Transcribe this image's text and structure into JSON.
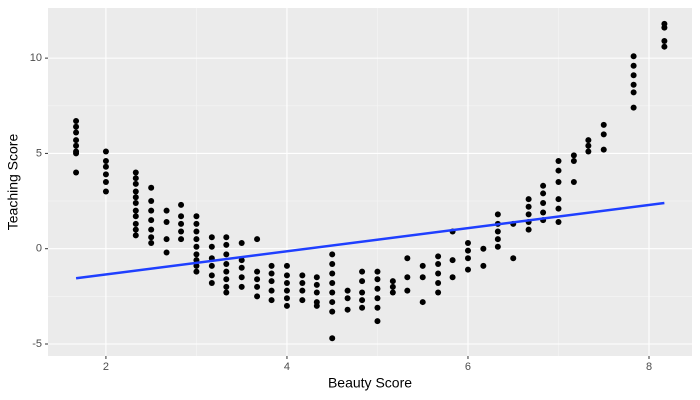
{
  "chart_data": {
    "type": "scatter",
    "xlabel": "Beauty Score",
    "ylabel": "Teaching Score",
    "xlim": [
      1.36,
      8.475
    ],
    "ylim": [
      -5.63,
      12.63
    ],
    "xticks": [
      2,
      4,
      6,
      8
    ],
    "yticks": [
      -5,
      0,
      5,
      10
    ],
    "minor_xticks": [
      3,
      5,
      7
    ],
    "minor_yticks": [
      -2.5,
      2.5,
      7.5
    ],
    "grid": true,
    "series": [
      {
        "type": "scatter",
        "color": "#000000",
        "x": [
          1.67,
          1.67,
          1.67,
          1.67,
          1.67,
          1.67,
          1.67,
          1.67,
          2,
          2,
          2,
          2,
          2,
          2,
          2.33,
          2.33,
          2.33,
          2.33,
          2.33,
          2.33,
          2.33,
          2.33,
          2.33,
          2.33,
          2.33,
          2.5,
          2.5,
          2.5,
          2.5,
          2.5,
          2.5,
          2.5,
          2.67,
          2.67,
          2.67,
          2.67,
          2.83,
          2.83,
          2.83,
          2.83,
          2.83,
          3,
          3,
          3,
          3,
          3,
          3,
          3,
          3,
          3,
          3.17,
          3.17,
          3.17,
          3.17,
          3.17,
          3.17,
          3.33,
          3.33,
          3.33,
          3.33,
          3.33,
          3.33,
          3.33,
          3.33,
          3.5,
          3.5,
          3.5,
          3.5,
          3.5,
          3.67,
          3.67,
          3.67,
          3.67,
          3.67,
          3.83,
          3.83,
          3.83,
          3.83,
          3.83,
          4,
          4,
          4,
          4,
          4,
          4,
          4.17,
          4.17,
          4.17,
          4.17,
          4.33,
          4.33,
          4.33,
          4.33,
          4.33,
          4.5,
          4.5,
          4.5,
          4.5,
          4.5,
          4.5,
          4.5,
          4.5,
          4.67,
          4.67,
          4.67,
          4.83,
          4.83,
          4.83,
          4.83,
          4.83,
          5,
          5,
          5,
          5,
          5,
          5,
          5.17,
          5.17,
          5.17,
          5.33,
          5.33,
          5.33,
          5.5,
          5.5,
          5.5,
          5.67,
          5.67,
          5.67,
          5.67,
          5.67,
          5.83,
          5.83,
          5.83,
          6,
          6,
          6,
          6,
          6.17,
          6.17,
          6.33,
          6.33,
          6.33,
          6.33,
          6.33,
          6.5,
          6.5,
          6.67,
          6.67,
          6.67,
          6.67,
          6.67,
          6.83,
          6.83,
          6.83,
          6.83,
          6.83,
          7,
          7,
          7,
          7,
          7,
          7,
          7.17,
          7.17,
          7.17,
          7.33,
          7.33,
          7.33,
          7.5,
          7.5,
          7.5,
          7.83,
          7.83,
          7.83,
          7.83,
          7.83,
          7.83,
          8.17,
          8.17,
          8.17,
          8.17
        ],
        "values": [
          6.7,
          6.4,
          6.1,
          5.7,
          5.4,
          5.1,
          5.0,
          4.0,
          5.1,
          4.6,
          4.3,
          3.9,
          3.5,
          3.0,
          4.0,
          3.7,
          3.4,
          3.0,
          2.7,
          2.4,
          2.0,
          1.7,
          1.3,
          1.0,
          0.7,
          3.2,
          2.5,
          2.0,
          1.5,
          1.0,
          0.6,
          0.3,
          2.0,
          1.4,
          0.5,
          -0.2,
          2.3,
          1.7,
          1.3,
          0.9,
          0.5,
          1.7,
          1.3,
          0.9,
          0.5,
          0.1,
          -0.3,
          -0.6,
          -0.9,
          -1.2,
          0.6,
          0.1,
          -0.5,
          -0.9,
          -1.4,
          -1.8,
          0.6,
          0.2,
          -0.3,
          -0.8,
          -1.2,
          -1.6,
          -2.0,
          -2.3,
          0.3,
          -0.6,
          -1.0,
          -1.5,
          -2.0,
          0.5,
          -1.2,
          -1.6,
          -2.0,
          -2.5,
          -0.9,
          -1.3,
          -1.7,
          -2.2,
          -2.7,
          -0.9,
          -1.4,
          -1.8,
          -2.2,
          -2.6,
          -3.0,
          -1.4,
          -1.8,
          -2.2,
          -2.7,
          -1.5,
          -1.9,
          -2.3,
          -2.8,
          -3.0,
          -0.3,
          -0.8,
          -1.3,
          -1.8,
          -2.3,
          -2.8,
          -3.3,
          -4.7,
          -2.2,
          -2.6,
          -3.2,
          -1.2,
          -1.7,
          -2.3,
          -2.7,
          -3.1,
          -1.2,
          -1.6,
          -2.1,
          -2.6,
          -3.1,
          -3.8,
          -1.7,
          -2.0,
          -2.3,
          -0.5,
          -1.5,
          -2.2,
          -0.9,
          -1.5,
          -2.8,
          -0.4,
          -0.8,
          -1.3,
          -1.8,
          -2.3,
          0.9,
          -0.6,
          -1.5,
          0.3,
          -0.1,
          -0.5,
          -1.1,
          0.0,
          -0.9,
          1.8,
          1.3,
          0.9,
          0.5,
          0.1,
          1.3,
          -0.5,
          2.6,
          2.2,
          1.8,
          1.4,
          1.0,
          3.3,
          2.9,
          2.4,
          1.9,
          1.5,
          4.6,
          4.1,
          3.5,
          2.6,
          2.1,
          1.4,
          4.9,
          4.6,
          3.5,
          5.7,
          5.4,
          5.1,
          6.5,
          6.0,
          5.2,
          10.1,
          9.6,
          9.1,
          8.6,
          8.2,
          7.4,
          11.8,
          11.6,
          10.9,
          10.6
        ]
      },
      {
        "type": "line",
        "color": "#1f3fff",
        "x": [
          1.67,
          8.17
        ],
        "values": [
          -1.55,
          2.4
        ]
      }
    ]
  }
}
